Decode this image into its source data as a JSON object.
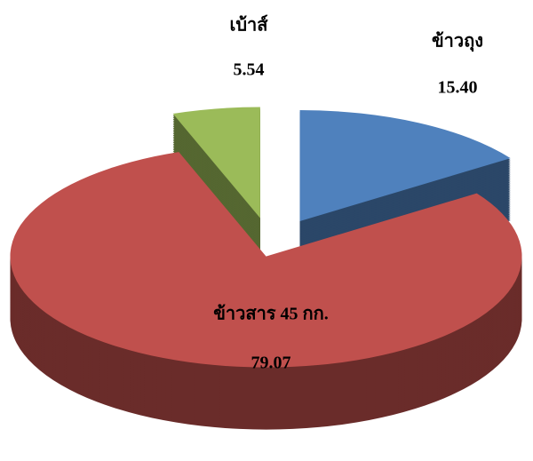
{
  "chart_data": {
    "type": "pie",
    "categories": [
      "ข้าวถุง",
      "ข้าวสาร 45 กก.",
      "เบ้าส์"
    ],
    "values": [
      15.4,
      79.07,
      5.54
    ],
    "value_labels": [
      "15.40",
      "79.07",
      "5.54"
    ],
    "colors": [
      "#4f81bd",
      "#c0504d",
      "#9bbb59"
    ]
  }
}
